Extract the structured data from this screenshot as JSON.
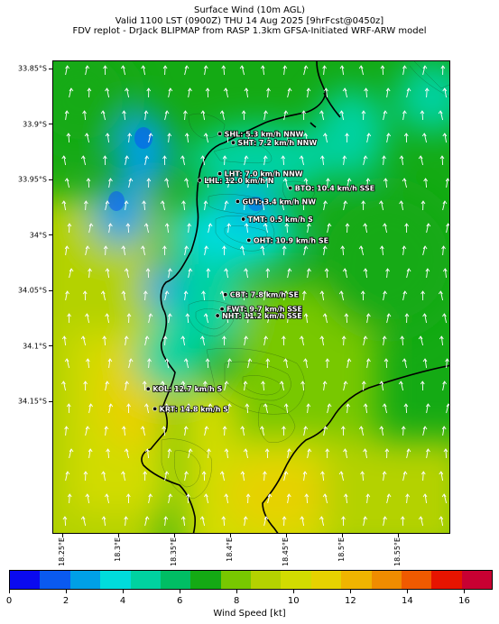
{
  "header": {
    "title": "Surface Wind (10m AGL)",
    "valid": "Valid 1100 LST (0900Z) THU 14 Aug 2025 [9hrFcst@0450z]",
    "source": "FDV replot - DrJack BLIPMAP from RASP 1.3km GFSA-Initiated WRF-ARW model"
  },
  "axes": {
    "lat_ticks": [
      {
        "value": -33.85,
        "label": "33.85°S"
      },
      {
        "value": -33.9,
        "label": "33.9°S"
      },
      {
        "value": -33.95,
        "label": "33.95°S"
      },
      {
        "value": -34.0,
        "label": "34°S"
      },
      {
        "value": -34.05,
        "label": "34.05°S"
      },
      {
        "value": -34.1,
        "label": "34.1°S"
      },
      {
        "value": -34.15,
        "label": "34.15°S"
      }
    ],
    "lon_ticks": [
      {
        "value": 18.25,
        "label": "18.25°E"
      },
      {
        "value": 18.3,
        "label": "18.3°E"
      },
      {
        "value": 18.35,
        "label": "18.35°E"
      },
      {
        "value": 18.4,
        "label": "18.4°E"
      },
      {
        "value": 18.45,
        "label": "18.45°E"
      },
      {
        "value": 18.5,
        "label": "18.5°E"
      },
      {
        "value": 18.55,
        "label": "18.55°E"
      }
    ]
  },
  "stations": [
    {
      "code": "SHL",
      "label": "SHL: 5.3 km/h NNW",
      "lat": -33.908,
      "lon": 18.39
    },
    {
      "code": "SHT",
      "label": "SHT: 7.2 km/h NNW",
      "lat": -33.916,
      "lon": 18.402
    },
    {
      "code": "LHT",
      "label": "LHT: 7.0 km/h NNW",
      "lat": -33.944,
      "lon": 18.39
    },
    {
      "code": "LHL",
      "label": "LHL: 12.0 km/h N",
      "lat": -33.95,
      "lon": 18.372
    },
    {
      "code": "BTO",
      "label": "BTO: 10.4 km/h SSE",
      "lat": -33.957,
      "lon": 18.453
    },
    {
      "code": "GUT",
      "label": "GUT: 3.4 km/h NW",
      "lat": -33.969,
      "lon": 18.406
    },
    {
      "code": "TMT",
      "label": "TMT: 0.5 km/h S",
      "lat": -33.985,
      "lon": 18.411
    },
    {
      "code": "OHT",
      "label": "OHT: 10.9 km/h SE",
      "lat": -34.004,
      "lon": 18.416
    },
    {
      "code": "CBT",
      "label": "CBT: 7.8 km/h SE",
      "lat": -34.053,
      "lon": 18.395
    },
    {
      "code": "FWT",
      "label": "FWT: 9.7 km/h SSE",
      "lat": -34.066,
      "lon": 18.392
    },
    {
      "code": "NHT",
      "label": "NHT: 11.2 km/h SSE",
      "lat": -34.072,
      "lon": 18.388
    },
    {
      "code": "KOL",
      "label": "KOL: 12.7 km/h S",
      "lat": -34.138,
      "lon": 18.326
    },
    {
      "code": "KRT",
      "label": "KRT: 14.8 km/h S",
      "lat": -34.156,
      "lon": 18.332
    }
  ],
  "colorbar": {
    "label": "Wind Speed [kt]",
    "min": 0,
    "max": 17,
    "tick_labels": [
      "0",
      "2",
      "4",
      "6",
      "8",
      "10",
      "12",
      "14",
      "16"
    ],
    "colors": [
      "#0a0af0",
      "#0a5af0",
      "#00a0e6",
      "#00dcdc",
      "#00d2a0",
      "#00be64",
      "#14aa14",
      "#78c800",
      "#b4d200",
      "#d2dc00",
      "#e6d200",
      "#f0b400",
      "#f08c00",
      "#f05a00",
      "#e61400",
      "#c80032"
    ]
  },
  "styling": {
    "coast_color": "#000000",
    "arrow_color": "#ffffff"
  }
}
